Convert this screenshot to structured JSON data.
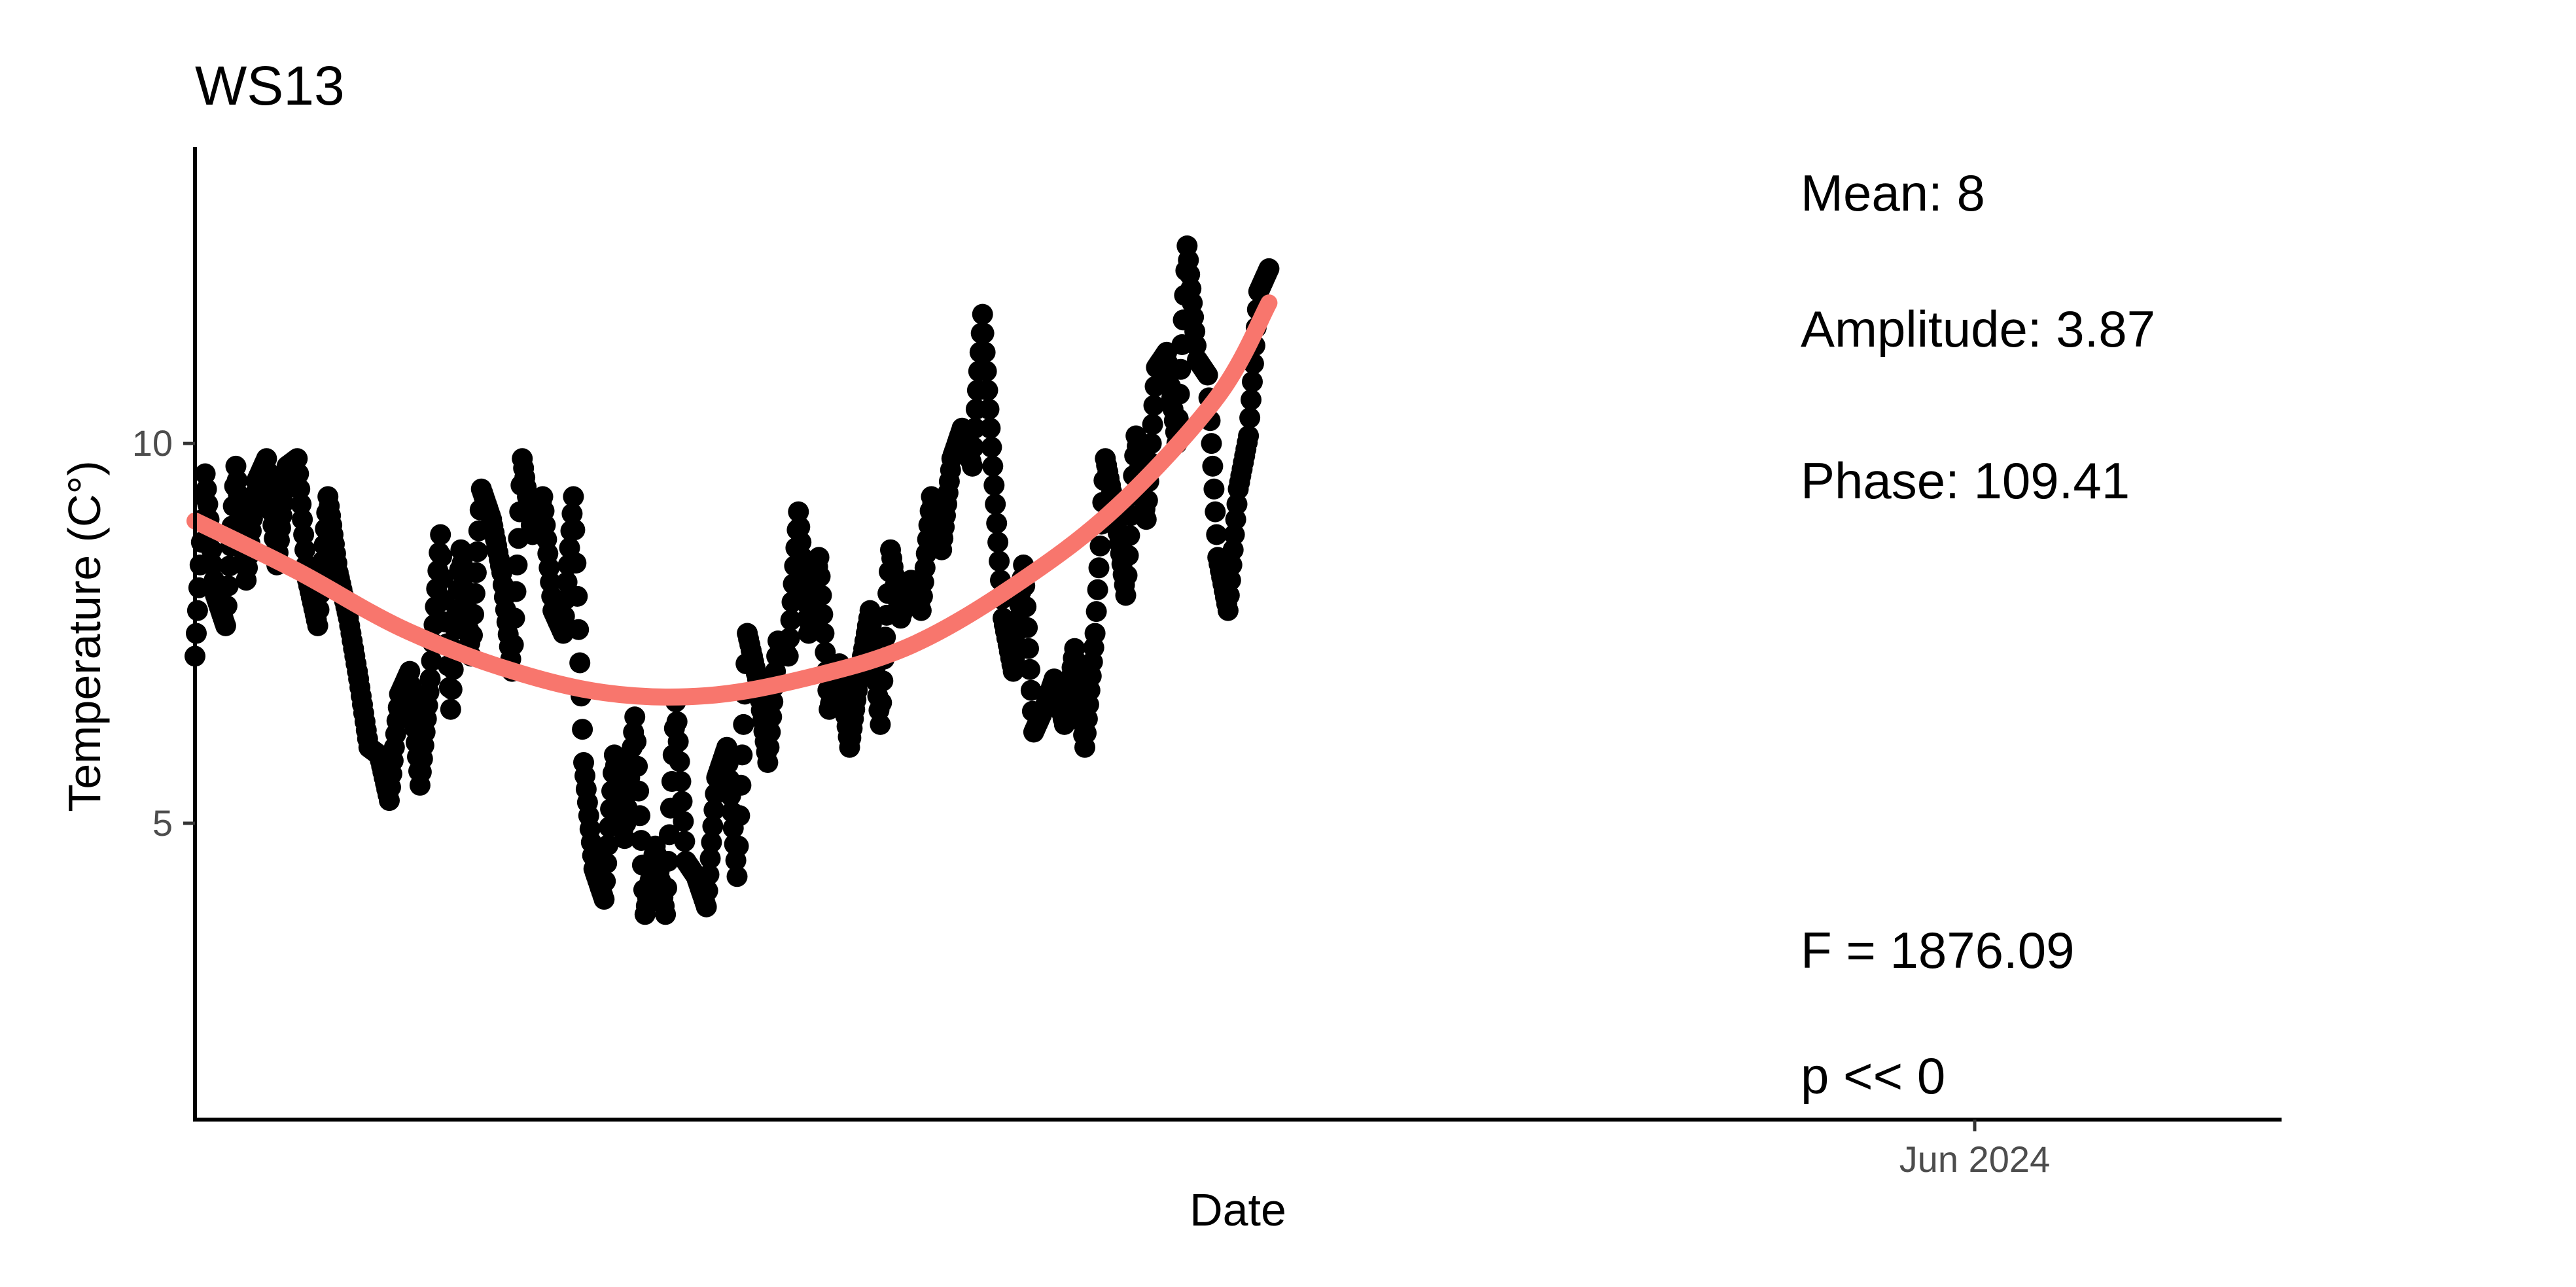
{
  "chart_data": {
    "type": "scatter",
    "title": "WS13",
    "xlabel": "Date",
    "ylabel": "Temperature (C°)",
    "x_range": [
      "2023-12-10",
      "2024-07-01"
    ],
    "ylim": [
      1.1,
      13.9
    ],
    "x_ticks": [
      {
        "x": "2024-06-01",
        "label": "Jun 2024"
      }
    ],
    "y_ticks": [
      {
        "y": 5,
        "label": "5"
      },
      {
        "y": 10,
        "label": "10"
      }
    ],
    "grid": false,
    "legend": "none",
    "colors": {
      "points": "#000000",
      "fit_line": "#F8766D",
      "axis": "#000000",
      "tick_labels": "#4d4d4d"
    },
    "annotations": [
      {
        "id": "mean",
        "text": "Mean: 8"
      },
      {
        "id": "amplitude",
        "text": "Amplitude: 3.87"
      },
      {
        "id": "phase",
        "text": "Phase: 109.41"
      },
      {
        "id": "f-stat",
        "text": "F =  1876.09"
      },
      {
        "id": "p-value",
        "text": "p <<  0"
      }
    ],
    "series": [
      {
        "type": "scatter",
        "x": [
          "2023-12-10",
          "2023-12-11",
          "2023-12-12",
          "2023-12-13",
          "2023-12-14",
          "2023-12-15",
          "2023-12-16",
          "2023-12-17",
          "2023-12-18",
          "2023-12-19",
          "2023-12-20",
          "2023-12-21",
          "2023-12-22",
          "2023-12-23",
          "2023-12-24",
          "2023-12-25",
          "2023-12-26",
          "2023-12-27",
          "2023-12-28",
          "2023-12-29",
          "2023-12-30",
          "2023-12-31",
          "2024-01-01",
          "2024-01-02",
          "2024-01-03",
          "2024-01-04",
          "2024-01-05",
          "2024-01-06",
          "2024-01-07",
          "2024-01-08",
          "2024-01-09",
          "2024-01-10",
          "2024-01-11",
          "2024-01-12",
          "2024-01-13",
          "2024-01-14",
          "2024-01-15",
          "2024-01-16",
          "2024-01-17",
          "2024-01-18",
          "2024-01-19",
          "2024-01-20",
          "2024-01-21",
          "2024-01-22",
          "2024-01-23",
          "2024-01-24",
          "2024-01-25",
          "2024-01-26",
          "2024-01-27",
          "2024-01-28",
          "2024-01-29",
          "2024-01-30",
          "2024-01-31",
          "2024-02-01",
          "2024-02-02",
          "2024-02-03",
          "2024-02-04",
          "2024-02-05",
          "2024-02-06",
          "2024-02-07",
          "2024-02-08",
          "2024-02-09",
          "2024-02-10",
          "2024-02-11",
          "2024-02-12",
          "2024-02-13",
          "2024-02-14",
          "2024-02-15",
          "2024-02-16",
          "2024-02-17",
          "2024-02-18",
          "2024-02-19",
          "2024-02-20",
          "2024-02-21",
          "2024-02-22",
          "2024-02-23",
          "2024-02-24",
          "2024-02-25",
          "2024-02-26",
          "2024-02-27",
          "2024-02-28",
          "2024-02-29",
          "2024-03-01",
          "2024-03-02",
          "2024-03-03",
          "2024-03-04",
          "2024-03-05",
          "2024-03-06",
          "2024-03-07",
          "2024-03-08",
          "2024-03-09",
          "2024-03-10",
          "2024-03-11",
          "2024-03-12",
          "2024-03-13",
          "2024-03-14",
          "2024-03-15",
          "2024-03-16",
          "2024-03-17",
          "2024-03-18",
          "2024-03-19",
          "2024-03-20",
          "2024-03-21",
          "2024-03-22",
          "2024-03-23",
          "2024-03-24"
        ],
        "y": [
          7.2,
          9.6,
          8.0,
          7.6,
          9.7,
          8.2,
          9.5,
          9.8,
          8.4,
          9.7,
          9.8,
          8.2,
          7.6,
          9.3,
          8.3,
          7.7,
          6.9,
          6.0,
          5.9,
          5.3,
          6.7,
          7.0,
          5.5,
          6.9,
          8.8,
          6.5,
          8.6,
          7.2,
          9.4,
          9.0,
          8.3,
          7.0,
          9.8,
          8.8,
          9.3,
          7.8,
          7.5,
          9.3,
          5.8,
          4.4,
          4.0,
          5.9,
          4.8,
          6.4,
          3.8,
          4.7,
          3.8,
          6.6,
          4.5,
          4.3,
          3.9,
          5.6,
          6.0,
          4.3,
          7.5,
          6.9,
          5.8,
          7.4,
          7.2,
          9.1,
          7.5,
          8.5,
          6.5,
          7.1,
          6.0,
          7.0,
          7.8,
          6.3,
          8.6,
          7.7,
          8.2,
          7.8,
          9.3,
          8.6,
          9.8,
          10.2,
          9.7,
          11.7,
          9.7,
          7.7,
          7.0,
          8.4,
          6.2,
          6.5,
          6.9,
          6.3,
          7.3,
          6.0,
          7.5,
          9.8,
          9.1,
          8.0,
          10.1,
          9.0,
          11.0,
          11.2,
          10.0,
          12.6,
          11.1,
          10.9,
          8.5,
          7.8,
          9.4,
          10.1,
          12.0,
          12.3
        ]
      },
      {
        "type": "line",
        "name": "",
        "x": [
          "2023-12-10",
          "2023-12-20",
          "2023-12-30",
          "2024-01-09",
          "2024-01-19",
          "2024-01-29",
          "2024-02-08",
          "2024-02-18",
          "2024-02-28",
          "2024-03-09",
          "2024-03-19",
          "2024-03-24"
        ],
        "y": [
          8.98,
          8.32,
          7.58,
          7.05,
          6.72,
          6.68,
          6.92,
          7.34,
          8.12,
          9.15,
          10.62,
          11.85
        ]
      }
    ]
  }
}
